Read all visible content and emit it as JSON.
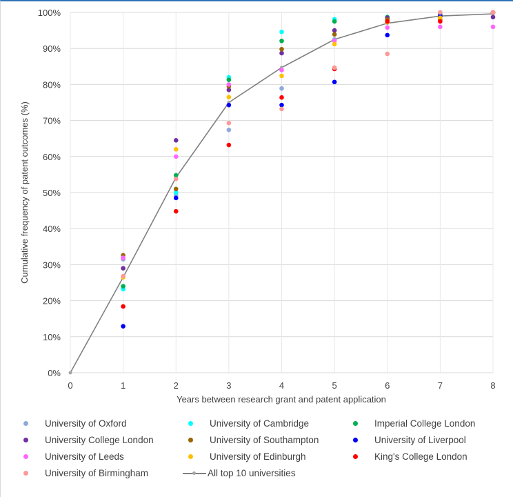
{
  "chart_data": {
    "type": "scatter",
    "title": "",
    "xlabel": "Years between research grant and patent application",
    "ylabel": "Cumulative frequency of patent outcomes (%)",
    "xlim": [
      0,
      8
    ],
    "ylim": [
      0,
      100
    ],
    "x_ticks": [
      "0",
      "1",
      "2",
      "3",
      "4",
      "5",
      "6",
      "7",
      "8"
    ],
    "y_ticks": [
      "0%",
      "10%",
      "20%",
      "30%",
      "40%",
      "50%",
      "60%",
      "70%",
      "80%",
      "90%",
      "100%"
    ],
    "grid": true,
    "legend_position": "bottom",
    "x": [
      1,
      2,
      3,
      4,
      5,
      6,
      7,
      8
    ],
    "series": [
      {
        "name": "University of Oxford",
        "color": "#8faadc",
        "values": [
          31.5,
          49.2,
          67.4,
          78.9,
          92.5,
          98.5,
          99.5,
          100
        ]
      },
      {
        "name": "University of Cambridge",
        "color": "#00ffff",
        "values": [
          23.2,
          50.0,
          82.0,
          94.6,
          98.1,
          98.7,
          100,
          100
        ]
      },
      {
        "name": "Imperial College London",
        "color": "#00b050",
        "values": [
          24.0,
          54.8,
          81.3,
          92.1,
          97.5,
          98.7,
          99.5,
          100
        ]
      },
      {
        "name": "University College London",
        "color": "#7030a0",
        "values": [
          29.0,
          64.5,
          78.5,
          88.7,
          95.0,
          98.5,
          99.0,
          98.7
        ]
      },
      {
        "name": "University of Southampton",
        "color": "#996600",
        "values": [
          32.6,
          51.0,
          79.5,
          89.8,
          93.9,
          98.0,
          98.0,
          100
        ]
      },
      {
        "name": "University of Liverpool",
        "color": "#0000ff",
        "values": [
          12.9,
          48.5,
          74.3,
          74.3,
          80.7,
          93.7,
          99.0,
          100
        ]
      },
      {
        "name": "University of Leeds",
        "color": "#ff66ff",
        "values": [
          31.9,
          60.0,
          80.0,
          84.0,
          92.1,
          95.8,
          96.0,
          96.0
        ]
      },
      {
        "name": "University of Edinburgh",
        "color": "#ffc000",
        "values": [
          26.5,
          62.0,
          76.5,
          82.4,
          91.2,
          97.3,
          98.5,
          100
        ]
      },
      {
        "name": "King's College London",
        "color": "#ff0000",
        "values": [
          18.4,
          44.8,
          63.2,
          76.4,
          84.3,
          97.5,
          97.5,
          100
        ]
      },
      {
        "name": "University of Birmingham",
        "color": "#ff9999",
        "values": [
          26.8,
          53.8,
          69.3,
          73.2,
          84.7,
          88.5,
          100,
          100
        ]
      }
    ],
    "aggregate": {
      "name": "All top 10 universities",
      "color": "#808080",
      "x": [
        0,
        1,
        2,
        3,
        4,
        5,
        6,
        7,
        8
      ],
      "values": [
        0,
        26.5,
        54.2,
        75.0,
        84.7,
        92.5,
        97.0,
        99.0,
        99.6
      ]
    }
  }
}
